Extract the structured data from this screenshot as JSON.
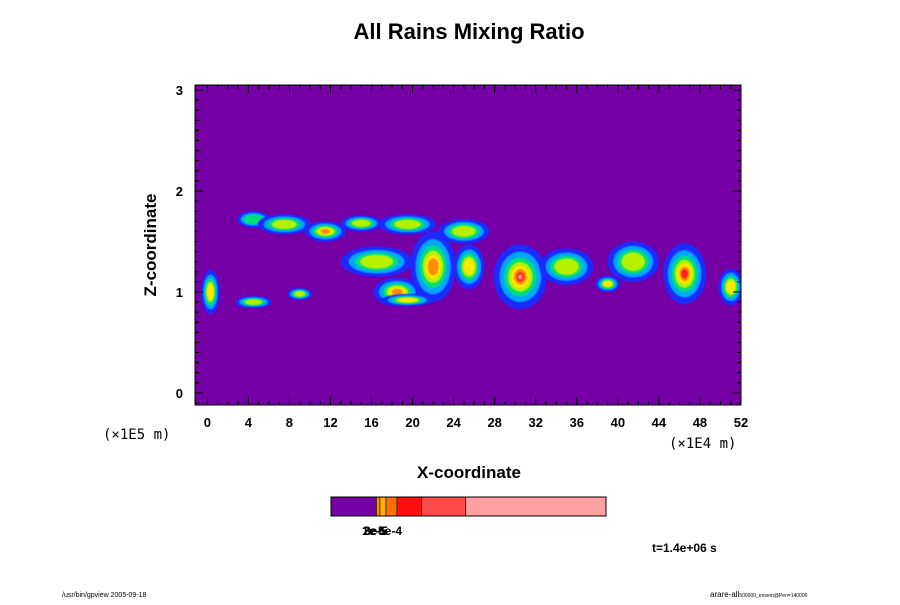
{
  "chart_data": {
    "type": "heatmap",
    "title": "All Rains Mixing Ratio",
    "xlabel": "X-coordinate",
    "ylabel": "Z-coordinate",
    "x_unit": "(×1E4 m)",
    "y_unit": "(×1E5 m)",
    "xlim": [
      -1.2,
      52
    ],
    "ylim": [
      -0.12,
      3.05
    ],
    "x_ticks": [
      "0",
      "4",
      "8",
      "12",
      "16",
      "20",
      "24",
      "28",
      "32",
      "36",
      "40",
      "44",
      "48",
      "52"
    ],
    "y_ticks": [
      "0",
      "1",
      "2",
      "3"
    ],
    "background_color": "#7400a6",
    "colorbar": {
      "colors": [
        "#7400a6",
        "#ff8a00",
        "#ffb300",
        "#ff7000",
        "#ff1010",
        "#ff4a4a",
        "#ff9f9f"
      ],
      "bounds": [
        0,
        0.165,
        0.178,
        0.2,
        0.24,
        0.33,
        0.49,
        1.0
      ],
      "labels": [
        "1e-5",
        "2e-5",
        "3e-5",
        "5e-4"
      ]
    },
    "time_label": "t=1.4e+06 s",
    "footer_left": "/usr/bin/gpview 2005-09-18",
    "footer_right_main": "arare-all",
    "footer_right_sub": "500000_ensem@Pen=140000",
    "rain_bands": [
      {
        "x": 0.3,
        "z": 1.0,
        "rx": 0.9,
        "rz": 0.22,
        "level": 3
      },
      {
        "x": 4.5,
        "z": 1.72,
        "rx": 1.6,
        "rz": 0.08,
        "level": 1
      },
      {
        "x": 7.5,
        "z": 1.67,
        "rx": 2.6,
        "rz": 0.1,
        "level": 2
      },
      {
        "x": 11.5,
        "z": 1.6,
        "rx": 2.0,
        "rz": 0.1,
        "level": 4
      },
      {
        "x": 15.0,
        "z": 1.68,
        "rx": 2.0,
        "rz": 0.08,
        "level": 2
      },
      {
        "x": 19.5,
        "z": 1.67,
        "rx": 2.8,
        "rz": 0.1,
        "level": 2
      },
      {
        "x": 25.0,
        "z": 1.6,
        "rx": 2.5,
        "rz": 0.12,
        "level": 2
      },
      {
        "x": 16.5,
        "z": 1.3,
        "rx": 3.5,
        "rz": 0.15,
        "level": 2
      },
      {
        "x": 18.5,
        "z": 1.0,
        "rx": 2.3,
        "rz": 0.14,
        "level": 4
      },
      {
        "x": 22.0,
        "z": 1.25,
        "rx": 2.2,
        "rz": 0.35,
        "level": 4
      },
      {
        "x": 25.5,
        "z": 1.25,
        "rx": 1.5,
        "rz": 0.22,
        "level": 3
      },
      {
        "x": 30.5,
        "z": 1.15,
        "rx": 2.6,
        "rz": 0.32,
        "level": 6
      },
      {
        "x": 35.0,
        "z": 1.25,
        "rx": 2.6,
        "rz": 0.18,
        "level": 2
      },
      {
        "x": 39.0,
        "z": 1.08,
        "rx": 1.2,
        "rz": 0.08,
        "level": 3
      },
      {
        "x": 41.5,
        "z": 1.3,
        "rx": 2.5,
        "rz": 0.2,
        "level": 2
      },
      {
        "x": 46.5,
        "z": 1.18,
        "rx": 2.1,
        "rz": 0.3,
        "level": 5
      },
      {
        "x": 51.0,
        "z": 1.05,
        "rx": 1.2,
        "rz": 0.18,
        "level": 3
      },
      {
        "x": 4.5,
        "z": 0.9,
        "rx": 1.8,
        "rz": 0.06,
        "level": 2
      },
      {
        "x": 9.0,
        "z": 0.98,
        "rx": 1.2,
        "rz": 0.06,
        "level": 2
      },
      {
        "x": 19.5,
        "z": 0.92,
        "rx": 2.5,
        "rz": 0.06,
        "level": 3
      }
    ]
  }
}
